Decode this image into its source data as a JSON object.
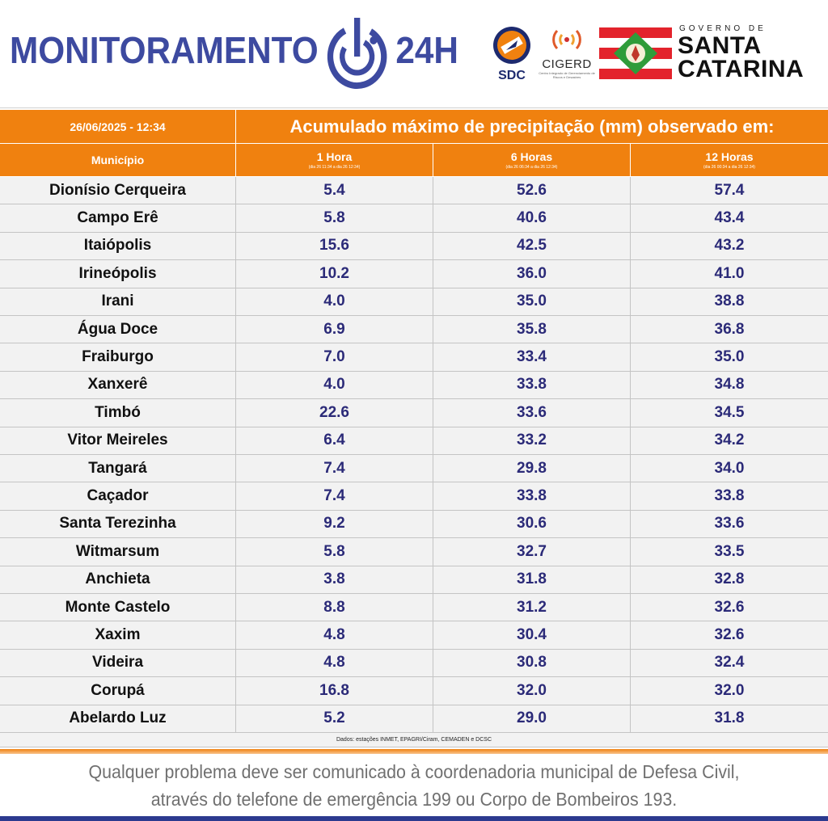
{
  "header": {
    "brand_left": "MONITORAMENTO",
    "brand_right": "24H",
    "sdc_label": "SDC",
    "cigerd_label": "CIGERD",
    "cigerd_sub": "Centro Integrado de Gerenciamento de Riscos e Desastres",
    "gov_small": "GOVERNO DE",
    "gov_line1": "SANTA",
    "gov_line2": "CATARINA",
    "colors": {
      "brand_blue": "#3d4aa0",
      "orange": "#f0810f",
      "red": "#e3232c",
      "green": "#2f9c3a"
    }
  },
  "table": {
    "timestamp": "26/06/2025 - 12:34",
    "title": "Acumulado máximo de precipitação (mm) observado em:",
    "col_municipio": "Município",
    "columns": [
      {
        "label": "1 Hora",
        "range": "(dia 26 11:34 a dia 26 12:34)"
      },
      {
        "label": "6 Horas",
        "range": "(dia 26 06:34 a dia 26 12:34)"
      },
      {
        "label": "12 Horas",
        "range": "(dia 26 00:34 a dia 26 12:34)"
      }
    ],
    "rows": [
      {
        "municipio": "Dionísio Cerqueira",
        "h1": "5.4",
        "h6": "52.6",
        "h12": "57.4"
      },
      {
        "municipio": "Campo Erê",
        "h1": "5.8",
        "h6": "40.6",
        "h12": "43.4"
      },
      {
        "municipio": "Itaiópolis",
        "h1": "15.6",
        "h6": "42.5",
        "h12": "43.2"
      },
      {
        "municipio": "Irineópolis",
        "h1": "10.2",
        "h6": "36.0",
        "h12": "41.0"
      },
      {
        "municipio": "Irani",
        "h1": "4.0",
        "h6": "35.0",
        "h12": "38.8"
      },
      {
        "municipio": "Água Doce",
        "h1": "6.9",
        "h6": "35.8",
        "h12": "36.8"
      },
      {
        "municipio": "Fraiburgo",
        "h1": "7.0",
        "h6": "33.4",
        "h12": "35.0"
      },
      {
        "municipio": "Xanxerê",
        "h1": "4.0",
        "h6": "33.8",
        "h12": "34.8"
      },
      {
        "municipio": "Timbó",
        "h1": "22.6",
        "h6": "33.6",
        "h12": "34.5"
      },
      {
        "municipio": "Vitor Meireles",
        "h1": "6.4",
        "h6": "33.2",
        "h12": "34.2"
      },
      {
        "municipio": "Tangará",
        "h1": "7.4",
        "h6": "29.8",
        "h12": "34.0"
      },
      {
        "municipio": "Caçador",
        "h1": "7.4",
        "h6": "33.8",
        "h12": "33.8"
      },
      {
        "municipio": "Santa Terezinha",
        "h1": "9.2",
        "h6": "30.6",
        "h12": "33.6"
      },
      {
        "municipio": "Witmarsum",
        "h1": "5.8",
        "h6": "32.7",
        "h12": "33.5"
      },
      {
        "municipio": "Anchieta",
        "h1": "3.8",
        "h6": "31.8",
        "h12": "32.8"
      },
      {
        "municipio": "Monte Castelo",
        "h1": "8.8",
        "h6": "31.2",
        "h12": "32.6"
      },
      {
        "municipio": "Xaxim",
        "h1": "4.8",
        "h6": "30.4",
        "h12": "32.6"
      },
      {
        "municipio": "Videira",
        "h1": "4.8",
        "h6": "30.8",
        "h12": "32.4"
      },
      {
        "municipio": "Corupá",
        "h1": "16.8",
        "h6": "32.0",
        "h12": "32.0"
      },
      {
        "municipio": "Abelardo Luz",
        "h1": "5.2",
        "h6": "29.0",
        "h12": "31.8"
      }
    ],
    "sources": "Dados: estações INMET, EPAGRI/Ciram, CEMADEN e DCSC"
  },
  "footer": {
    "line1": "Qualquer problema deve ser comunicado à coordenadoria municipal de Defesa Civil,",
    "line2": "através do telefone de emergência 199 ou Corpo de Bombeiros 193."
  }
}
